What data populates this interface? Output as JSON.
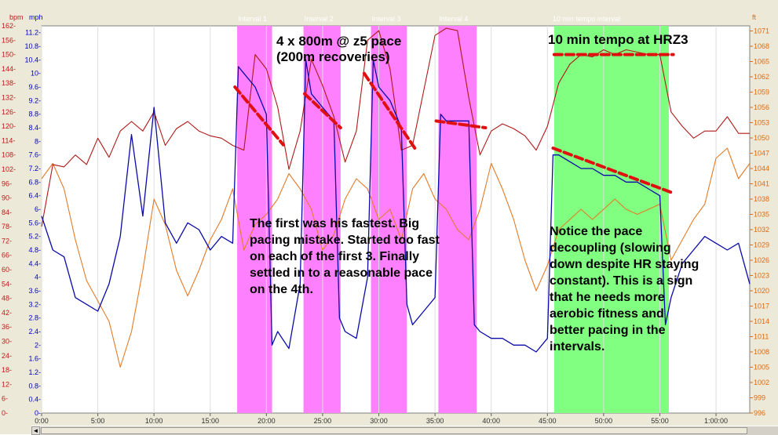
{
  "chart_data": {
    "type": "line",
    "units": {
      "hr": "bpm",
      "pace": "mph",
      "elev": "ft"
    },
    "x_ticks": [
      "0:00",
      "5:00",
      "10:00",
      "15:00",
      "20:00",
      "25:00",
      "30:00",
      "35:00",
      "40:00",
      "45:00",
      "50:00",
      "55:00",
      "1:00:00"
    ],
    "xlim": [
      0,
      63
    ],
    "hr_axis": {
      "range": [
        0,
        162
      ],
      "ticks": [
        "0",
        "6",
        "12",
        "18",
        "24",
        "30",
        "36",
        "42",
        "48",
        "54",
        "60",
        "66",
        "72",
        "78",
        "84",
        "90",
        "96",
        "102",
        "108",
        "114",
        "120",
        "126",
        "132",
        "138",
        "144",
        "150",
        "156",
        "162"
      ]
    },
    "pace_axis": {
      "range": [
        0,
        11.4
      ],
      "ticks": [
        "0",
        "0.4",
        "0.8",
        "1.2",
        "1.6",
        "2",
        "2.4",
        "2.8",
        "3.2",
        "3.6",
        "4",
        "4.4",
        "4.8",
        "5.2",
        "5.6",
        "6",
        "6.4",
        "6.8",
        "7.2",
        "7.6",
        "8",
        "8.4",
        "8.8",
        "9.2",
        "9.6",
        "10",
        "10.4",
        "10.8",
        "11.2"
      ]
    },
    "elev_axis": {
      "range": [
        996,
        1072
      ],
      "ticks": [
        "996",
        "999",
        "1002",
        "1005",
        "1008",
        "1011",
        "1014",
        "1017",
        "1020",
        "1023",
        "1026",
        "1029",
        "1032",
        "1035",
        "1038",
        "1041",
        "1044",
        "1047",
        "1050",
        "1053",
        "1056",
        "1059",
        "1062",
        "1065",
        "1068",
        "1071"
      ]
    },
    "intervals": [
      {
        "label": "Interval 1",
        "start": 17.4,
        "end": 20.5,
        "color": "#ff80ff"
      },
      {
        "label": "Interval 2",
        "start": 23.3,
        "end": 26.6,
        "color": "#ff80ff"
      },
      {
        "label": "Interval 3",
        "start": 29.3,
        "end": 32.5,
        "color": "#ff80ff"
      },
      {
        "label": "Interval 4",
        "start": 35.3,
        "end": 38.7,
        "color": "#ff80ff"
      },
      {
        "label": "10 min tempo interval",
        "start": 45.6,
        "end": 55.8,
        "color": "#80ff80"
      }
    ],
    "series": [
      {
        "key": "hr",
        "color": "#b01818",
        "x": [
          0,
          1,
          2,
          3,
          4,
          5,
          6,
          7,
          8,
          9,
          10,
          11,
          12,
          13,
          14,
          15,
          16,
          17,
          18,
          19,
          20,
          21,
          22,
          23,
          24,
          25,
          26,
          27,
          28,
          29,
          30,
          31,
          32,
          33,
          34,
          35,
          36,
          37,
          38,
          39,
          40,
          41,
          42,
          43,
          44,
          45,
          46,
          47,
          48,
          49,
          50,
          51,
          52,
          53,
          54,
          55,
          56,
          57,
          58,
          59,
          60,
          61,
          62,
          63
        ],
        "values": [
          78,
          104,
          103,
          108,
          104,
          115,
          107,
          118,
          122,
          118,
          126,
          112,
          119,
          122,
          118,
          116,
          115,
          112,
          110,
          150,
          144,
          128,
          102,
          118,
          148,
          137,
          124,
          105,
          118,
          156,
          160,
          144,
          110,
          112,
          135,
          158,
          161,
          160,
          132,
          108,
          118,
          121,
          119,
          116,
          110,
          120,
          138,
          146,
          150,
          149,
          152,
          150,
          152,
          151,
          150,
          150,
          126,
          120,
          115,
          118,
          118,
          124,
          117,
          117
        ]
      },
      {
        "key": "elev",
        "color": "#e57b27",
        "x": [
          0,
          1,
          2,
          3,
          4,
          5,
          6,
          7,
          8,
          9,
          10,
          11,
          12,
          13,
          14,
          15,
          16,
          17,
          18,
          19,
          20,
          21,
          22,
          23,
          24,
          25,
          26,
          27,
          28,
          29,
          30,
          31,
          32,
          33,
          34,
          35,
          36,
          37,
          38,
          39,
          40,
          41,
          42,
          43,
          44,
          45,
          46,
          47,
          48,
          49,
          50,
          51,
          52,
          53,
          54,
          55,
          56,
          57,
          58,
          59,
          60,
          61,
          62,
          63
        ],
        "values": [
          1042,
          1045,
          1040,
          1030,
          1022,
          1018,
          1014,
          1005,
          1012,
          1024,
          1038,
          1033,
          1024,
          1019,
          1024,
          1030,
          1034,
          1040,
          1028,
          1033,
          1035,
          1038,
          1043,
          1040,
          1036,
          1028,
          1031,
          1038,
          1042,
          1040,
          1034,
          1036,
          1030,
          1040,
          1043,
          1038,
          1036,
          1032,
          1030,
          1036,
          1045,
          1040,
          1034,
          1026,
          1020,
          1025,
          1032,
          1034,
          1036,
          1034,
          1036,
          1038,
          1036,
          1035,
          1036,
          1037,
          1026,
          1030,
          1034,
          1037,
          1046,
          1048,
          1042,
          1045
        ]
      },
      {
        "key": "pace",
        "color": "#0a0aa8",
        "x": [
          0,
          1,
          2,
          3,
          4,
          5,
          6,
          7,
          8,
          9,
          10,
          11,
          12,
          13,
          14,
          15,
          16,
          17,
          17.5,
          18,
          19,
          20,
          20.5,
          21,
          22,
          23,
          23.5,
          24,
          25,
          26,
          26.5,
          27,
          28,
          29,
          29.5,
          30,
          31,
          32,
          32.5,
          33,
          34,
          35,
          35.5,
          36,
          37,
          38,
          38.5,
          39,
          40,
          41,
          42,
          43,
          44,
          45,
          45.5,
          46,
          47,
          48,
          49,
          50,
          51,
          52,
          53,
          54,
          55,
          55.5,
          56,
          57,
          58,
          59,
          60,
          61,
          62,
          63
        ],
        "values": [
          5.8,
          4.8,
          4.6,
          3.4,
          3.2,
          3.0,
          3.8,
          5.2,
          8.2,
          5.8,
          9.0,
          5.6,
          5.0,
          5.6,
          5.4,
          4.8,
          5.2,
          5.0,
          10.2,
          10.0,
          9.6,
          8.8,
          2.0,
          2.4,
          1.9,
          3.8,
          10.4,
          9.4,
          9.0,
          8.6,
          2.8,
          2.4,
          2.2,
          4.0,
          10.4,
          9.6,
          9.2,
          8.4,
          3.2,
          2.6,
          3.0,
          3.4,
          8.8,
          8.6,
          8.6,
          8.6,
          2.6,
          2.4,
          2.2,
          2.2,
          2.0,
          2.0,
          1.8,
          2.2,
          7.6,
          7.6,
          7.4,
          7.2,
          7.2,
          7.0,
          7.0,
          6.8,
          6.8,
          6.6,
          6.4,
          2.6,
          3.4,
          4.4,
          4.8,
          5.2,
          5.0,
          4.8,
          5.0,
          3.8
        ]
      }
    ],
    "annotations": [
      {
        "text": [
          "4 x 800m @ z5 pace",
          "(200m recoveries)"
        ]
      },
      {
        "text": [
          "10 min tempo at HRZ3"
        ]
      },
      {
        "text": [
          "The first was his fastest. Big",
          "pacing mistake. Started too fast",
          "on each of the first 3. Finally",
          "settled in to a reasonable pace",
          "on the 4th."
        ]
      },
      {
        "text": [
          "Notice the pace",
          "decoupling (slowing",
          "down despite HR staying",
          "constant). This is a sign",
          "that he needs more",
          "aerobic fitness and",
          "better pacing in the",
          "intervals."
        ]
      }
    ],
    "trend_lines": [
      {
        "on": "pace",
        "x": [
          17.2,
          21.5
        ],
        "y": [
          9.6,
          7.9
        ]
      },
      {
        "on": "pace",
        "x": [
          23.4,
          26.6
        ],
        "y": [
          9.4,
          8.4
        ]
      },
      {
        "on": "pace",
        "x": [
          28.7,
          33.2
        ],
        "y": [
          10.0,
          7.8
        ]
      },
      {
        "on": "pace",
        "x": [
          35.1,
          39.5
        ],
        "y": [
          8.6,
          8.4
        ]
      },
      {
        "on": "pace",
        "x": [
          45.5,
          56.0
        ],
        "y": [
          7.8,
          6.5
        ]
      },
      {
        "on": "hr",
        "x": [
          45.6,
          56.2
        ],
        "y": [
          150,
          150
        ]
      }
    ]
  },
  "colors": {
    "plot_bg": "#ffffff",
    "frame": "#ece9d8",
    "hr": "#c01818",
    "pace": "#0000cc",
    "elev": "#e06a10",
    "trend": "#e01010"
  },
  "scrollbar": {
    "arrow_icon": "scroll-left-arrow-icon",
    "arrow_glyph": "◄"
  }
}
